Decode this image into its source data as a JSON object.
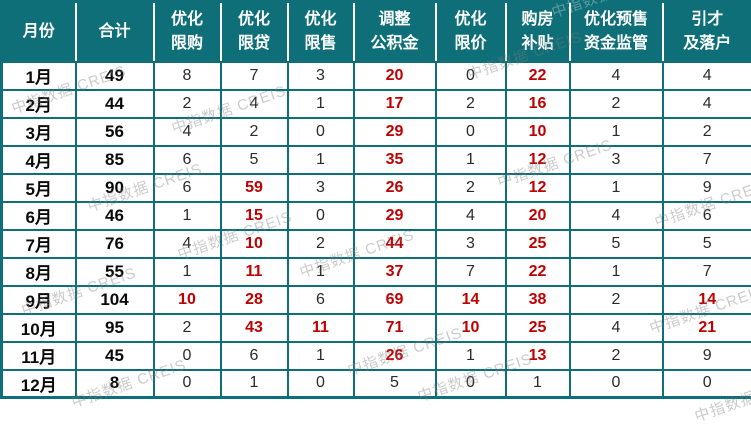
{
  "colors": {
    "teal": "#0E6F78",
    "red": "#C00000",
    "text": "#2b2b2b"
  },
  "watermark": {
    "text": "中指数据 CREIS"
  },
  "chart_data": {
    "type": "table",
    "title": "",
    "columns": [
      "月份",
      "合计",
      "优化限购",
      "优化限贷",
      "优化限售",
      "调整公积金",
      "优化限价",
      "购房补贴",
      "优化预售资金监管",
      "引才及落户"
    ],
    "header_lines": [
      [
        "月份"
      ],
      [
        "合计"
      ],
      [
        "优化",
        "限购"
      ],
      [
        "优化",
        "限贷"
      ],
      [
        "优化",
        "限售"
      ],
      [
        "调整",
        "公积金"
      ],
      [
        "优化",
        "限价"
      ],
      [
        "购房",
        "补贴"
      ],
      [
        "优化预售",
        "资金监管"
      ],
      [
        "引才",
        "及落户"
      ]
    ],
    "rows": [
      [
        "1月",
        49,
        8,
        7,
        3,
        20,
        0,
        22,
        4,
        4
      ],
      [
        "2月",
        44,
        2,
        4,
        1,
        17,
        2,
        16,
        2,
        4
      ],
      [
        "3月",
        56,
        4,
        2,
        0,
        29,
        0,
        10,
        1,
        2
      ],
      [
        "4月",
        85,
        6,
        5,
        1,
        35,
        1,
        12,
        3,
        7
      ],
      [
        "5月",
        90,
        6,
        59,
        3,
        26,
        2,
        12,
        1,
        9
      ],
      [
        "6月",
        46,
        1,
        15,
        0,
        29,
        4,
        20,
        4,
        6
      ],
      [
        "7月",
        76,
        4,
        10,
        2,
        44,
        3,
        25,
        5,
        5
      ],
      [
        "8月",
        55,
        1,
        11,
        1,
        37,
        7,
        22,
        1,
        7
      ],
      [
        "9月",
        104,
        10,
        28,
        6,
        69,
        14,
        38,
        2,
        14
      ],
      [
        "10月",
        95,
        2,
        43,
        11,
        71,
        10,
        25,
        4,
        21
      ],
      [
        "11月",
        45,
        0,
        6,
        1,
        26,
        1,
        13,
        2,
        9
      ],
      [
        "12月",
        8,
        0,
        1,
        0,
        5,
        0,
        1,
        0,
        0
      ]
    ],
    "red_cells": [
      [
        5,
        7
      ],
      [
        5,
        7
      ],
      [
        5,
        7
      ],
      [
        5,
        7
      ],
      [
        3,
        5,
        7
      ],
      [
        3,
        5,
        7
      ],
      [
        3,
        5,
        7
      ],
      [
        3,
        5,
        7
      ],
      [
        2,
        3,
        5,
        6,
        7,
        9
      ],
      [
        3,
        4,
        5,
        6,
        7,
        9
      ],
      [
        5,
        7
      ],
      []
    ]
  }
}
